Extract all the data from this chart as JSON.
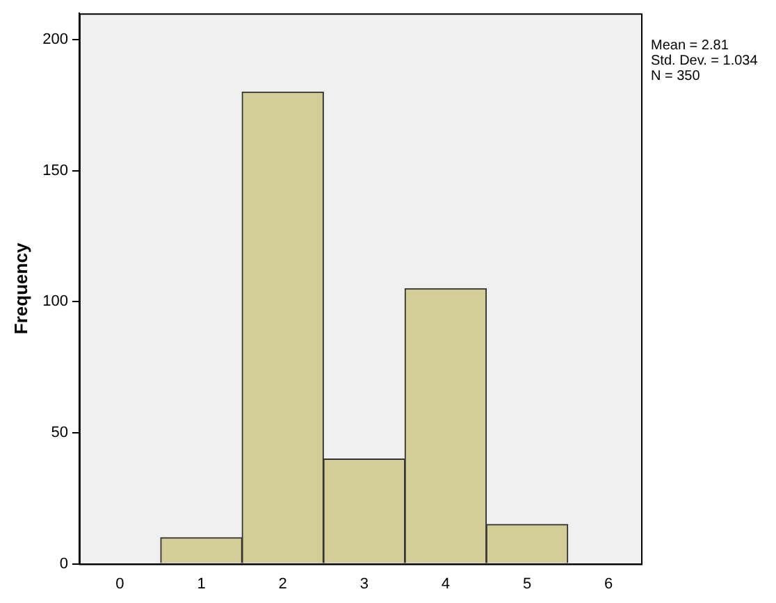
{
  "chart_data": {
    "type": "histogram",
    "ylabel": "Frequency",
    "bins": [
      0.5,
      1.5,
      2.5,
      3.5,
      4.5,
      5.5
    ],
    "values": [
      10,
      180,
      40,
      105,
      15
    ],
    "color": "#d3ce97",
    "xlim": [
      -0.5,
      6.4
    ],
    "xticks": [
      0,
      1,
      2,
      3,
      4,
      5,
      6
    ],
    "ylim": [
      0,
      210
    ],
    "yticks": [
      0,
      50,
      100,
      150,
      200
    ],
    "grid": false,
    "legend": false,
    "annotations": [
      "Mean = 2.81",
      "Std. Dev. = 1.034",
      "N = 350"
    ]
  }
}
